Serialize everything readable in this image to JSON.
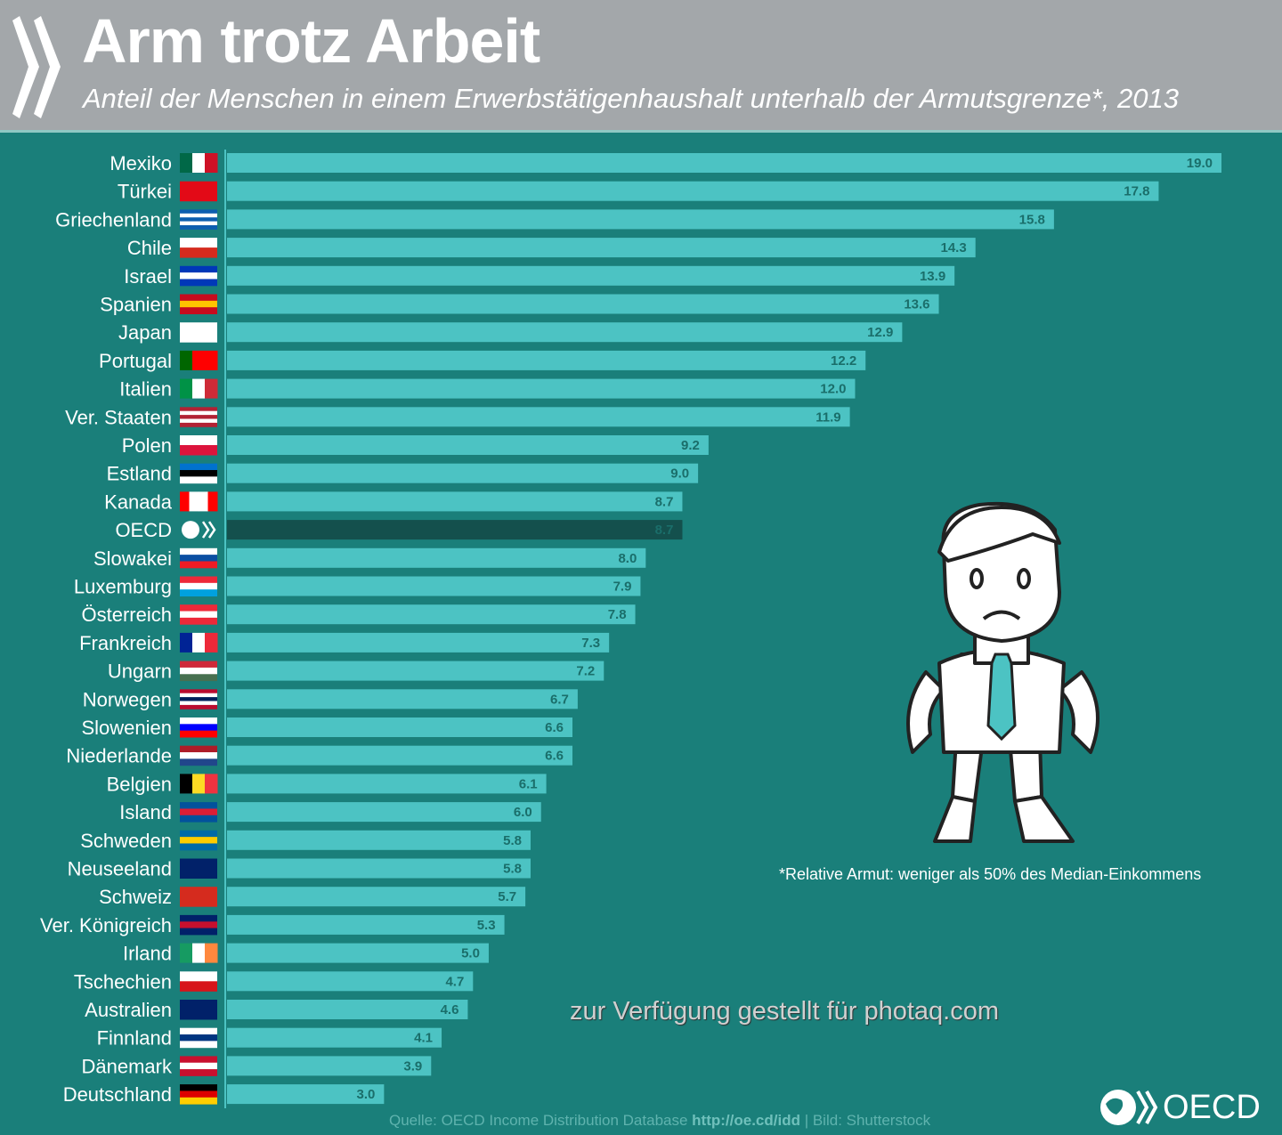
{
  "header": {
    "title": "Arm trotz Arbeit",
    "subtitle": "Anteil der Menschen in einem Erwerbstätigenhaushalt unterhalb der Armutsgrenze*, 2013"
  },
  "footnote": "*Relative Armut: weniger als 50% des Median-Einkommens",
  "source": {
    "prefix": "Quelle: OECD Income Distribution Database ",
    "url": "http://oe.cd/idd",
    "suffix": " | Bild: Shutterstock"
  },
  "logo_text": "OECD",
  "watermark": "zur Verfügung gestellt für photaq.com",
  "colors": {
    "header": "#a3a7aa",
    "background": "#1a7f7a",
    "bar": "#4cc3c3",
    "highlight_bar": "#14504d"
  },
  "chart_data": {
    "type": "bar",
    "orientation": "horizontal",
    "title": "Arm trotz Arbeit",
    "subtitle": "Anteil der Menschen in einem Erwerbstätigenhaushalt unterhalb der Armutsgrenze*, 2013",
    "xlim": [
      0,
      19.0
    ],
    "grid": false,
    "highlight": "OECD",
    "categories": [
      "Mexiko",
      "Türkei",
      "Griechenland",
      "Chile",
      "Israel",
      "Spanien",
      "Japan",
      "Portugal",
      "Italien",
      "Ver. Staaten",
      "Polen",
      "Estland",
      "Kanada",
      "OECD",
      "Slowakei",
      "Luxemburg",
      "Österreich",
      "Frankreich",
      "Ungarn",
      "Norwegen",
      "Slowenien",
      "Niederlande",
      "Belgien",
      "Island",
      "Schweden",
      "Neuseeland",
      "Schweiz",
      "Ver. Königreich",
      "Irland",
      "Tschechien",
      "Australien",
      "Finnland",
      "Dänemark",
      "Deutschland"
    ],
    "values": [
      19.0,
      17.8,
      15.8,
      14.3,
      13.9,
      13.6,
      12.9,
      12.2,
      12.0,
      11.9,
      9.2,
      9.0,
      8.7,
      8.7,
      8.0,
      7.9,
      7.8,
      7.3,
      7.2,
      6.7,
      6.6,
      6.6,
      6.1,
      6.0,
      5.8,
      5.8,
      5.7,
      5.3,
      5.0,
      4.7,
      4.6,
      4.1,
      3.9,
      3.0
    ],
    "labels": [
      "19.0",
      "17.8",
      "15.8",
      "14.3",
      "13.9",
      "13.6",
      "12.9",
      "12.2",
      "12.0",
      "11.9",
      "9.2",
      "9.0",
      "8.7",
      "8.7",
      "8.0",
      "7.9",
      "7.8",
      "7.3",
      "7.2",
      "6.7",
      "6.6",
      "6.6",
      "6.1",
      "6.0",
      "5.8",
      "5.8",
      "5.7",
      "5.3",
      "5.0",
      "4.7",
      "4.6",
      "4.1",
      "3.9",
      "3.0"
    ],
    "flags": [
      {
        "dir": "v",
        "c": [
          "#006847",
          "#ffffff",
          "#ce1126"
        ]
      },
      {
        "dir": "h",
        "c": [
          "#e30a17"
        ]
      },
      {
        "dir": "h",
        "c": [
          "#0d5eaf",
          "#ffffff",
          "#0d5eaf",
          "#ffffff",
          "#0d5eaf"
        ]
      },
      {
        "dir": "h",
        "c": [
          "#ffffff",
          "#d52b1e"
        ]
      },
      {
        "dir": "h",
        "c": [
          "#0038b8",
          "#ffffff",
          "#0038b8"
        ]
      },
      {
        "dir": "h",
        "c": [
          "#c60b1e",
          "#ffc400",
          "#c60b1e"
        ]
      },
      {
        "dir": "h",
        "c": [
          "#ffffff"
        ]
      },
      {
        "dir": "v",
        "c": [
          "#006600",
          "#ff0000",
          "#ff0000"
        ]
      },
      {
        "dir": "v",
        "c": [
          "#009246",
          "#ffffff",
          "#ce2b37"
        ]
      },
      {
        "dir": "h",
        "c": [
          "#b22234",
          "#ffffff",
          "#b22234",
          "#ffffff",
          "#b22234"
        ]
      },
      {
        "dir": "h",
        "c": [
          "#ffffff",
          "#dc143c"
        ]
      },
      {
        "dir": "h",
        "c": [
          "#0072ce",
          "#000000",
          "#ffffff"
        ]
      },
      {
        "dir": "v",
        "c": [
          "#ff0000",
          "#ffffff",
          "#ffffff",
          "#ff0000"
        ]
      },
      {
        "dir": "h",
        "c": [
          "#1a7f7a"
        ]
      },
      {
        "dir": "h",
        "c": [
          "#ffffff",
          "#0b4ea2",
          "#ee1c25"
        ]
      },
      {
        "dir": "h",
        "c": [
          "#ed2939",
          "#ffffff",
          "#00a1de"
        ]
      },
      {
        "dir": "h",
        "c": [
          "#ed2939",
          "#ffffff",
          "#ed2939"
        ]
      },
      {
        "dir": "v",
        "c": [
          "#002395",
          "#ffffff",
          "#ed2939"
        ]
      },
      {
        "dir": "h",
        "c": [
          "#ce2939",
          "#ffffff",
          "#477050"
        ]
      },
      {
        "dir": "h",
        "c": [
          "#ba0c2f",
          "#ffffff",
          "#00205b",
          "#ffffff",
          "#ba0c2f"
        ]
      },
      {
        "dir": "h",
        "c": [
          "#ffffff",
          "#0000ff",
          "#ff0000"
        ]
      },
      {
        "dir": "h",
        "c": [
          "#ae1c28",
          "#ffffff",
          "#21468b"
        ]
      },
      {
        "dir": "v",
        "c": [
          "#000000",
          "#fdda24",
          "#ef3340"
        ]
      },
      {
        "dir": "h",
        "c": [
          "#02529c",
          "#dc1e35",
          "#02529c"
        ]
      },
      {
        "dir": "h",
        "c": [
          "#006aa7",
          "#fecc00",
          "#006aa7"
        ]
      },
      {
        "dir": "h",
        "c": [
          "#012169"
        ]
      },
      {
        "dir": "h",
        "c": [
          "#d52b1e"
        ]
      },
      {
        "dir": "h",
        "c": [
          "#012169",
          "#c8102e",
          "#012169"
        ]
      },
      {
        "dir": "v",
        "c": [
          "#169b62",
          "#ffffff",
          "#ff883e"
        ]
      },
      {
        "dir": "h",
        "c": [
          "#ffffff",
          "#d7141a"
        ]
      },
      {
        "dir": "h",
        "c": [
          "#012169"
        ]
      },
      {
        "dir": "h",
        "c": [
          "#ffffff",
          "#003580",
          "#ffffff"
        ]
      },
      {
        "dir": "h",
        "c": [
          "#c8102e",
          "#ffffff",
          "#c8102e"
        ]
      },
      {
        "dir": "h",
        "c": [
          "#000000",
          "#dd0000",
          "#ffce00"
        ]
      }
    ]
  }
}
